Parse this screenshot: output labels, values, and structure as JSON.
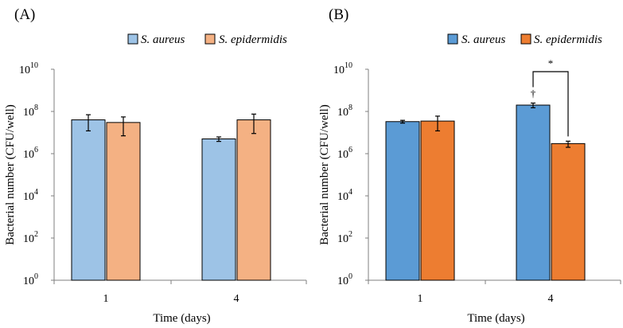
{
  "chart_data": [
    {
      "type": "bar",
      "panel_label": "(A)",
      "categories": [
        "1",
        "4"
      ],
      "xlabel": "Time (days)",
      "ylabel": "Bacterial number (CFU/well)",
      "yscale": "log",
      "ylim": [
        1,
        10000000000
      ],
      "yticks": [
        {
          "base": "10",
          "exp": "0"
        },
        {
          "base": "10",
          "exp": "2"
        },
        {
          "base": "10",
          "exp": "4"
        },
        {
          "base": "10",
          "exp": "6"
        },
        {
          "base": "10",
          "exp": "8"
        },
        {
          "base": "10",
          "exp": "10"
        }
      ],
      "grid": false,
      "legend_position": "top-right",
      "series": [
        {
          "name": "S. aureus",
          "color": "#9dc3e6",
          "values": [
            40000000,
            5000000
          ],
          "error_low": [
            12000000,
            3800000
          ],
          "error_high": [
            70000000,
            6200000
          ]
        },
        {
          "name": "S. epidermidis",
          "color": "#f4b183",
          "values": [
            30000000,
            40000000
          ],
          "error_low": [
            7000000,
            9000000
          ],
          "error_high": [
            55000000,
            75000000
          ]
        }
      ],
      "annotations": []
    },
    {
      "type": "bar",
      "panel_label": "(B)",
      "categories": [
        "1",
        "4"
      ],
      "xlabel": "Time (days)",
      "ylabel": "Bacterial number (CFU/well)",
      "yscale": "log",
      "ylim": [
        1,
        10000000000
      ],
      "yticks": [
        {
          "base": "10",
          "exp": "0"
        },
        {
          "base": "10",
          "exp": "2"
        },
        {
          "base": "10",
          "exp": "4"
        },
        {
          "base": "10",
          "exp": "6"
        },
        {
          "base": "10",
          "exp": "8"
        },
        {
          "base": "10",
          "exp": "10"
        }
      ],
      "grid": false,
      "legend_position": "top-right",
      "series": [
        {
          "name": "S. aureus",
          "color": "#5b9bd5",
          "values": [
            33000000,
            200000000
          ],
          "error_low": [
            28000000,
            150000000
          ],
          "error_high": [
            38000000,
            250000000
          ]
        },
        {
          "name": "S. epidermidis",
          "color": "#ed7d31",
          "values": [
            35000000,
            3000000
          ],
          "error_low": [
            12000000,
            2000000
          ],
          "error_high": [
            60000000,
            3900000
          ]
        }
      ],
      "annotations": [
        {
          "text": "†",
          "category": "4",
          "series": "S. aureus"
        },
        {
          "text": "*",
          "category": "4",
          "between": [
            "S. aureus",
            "S. epidermidis"
          ]
        }
      ]
    }
  ]
}
